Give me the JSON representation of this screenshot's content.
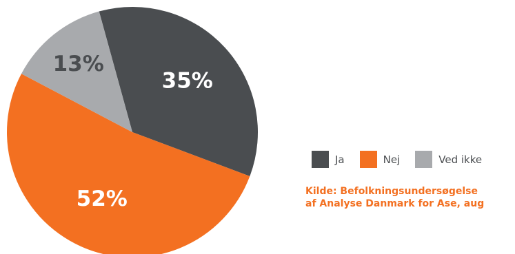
{
  "chart_data": {
    "type": "pie",
    "categories": [
      "Ja",
      "Nej",
      "Ved ikke"
    ],
    "values": [
      35,
      52,
      13
    ],
    "value_labels": [
      "35%",
      "52%",
      "13%"
    ],
    "colors": [
      "#4a4d50",
      "#f37021",
      "#a8aaad"
    ],
    "label_colors": [
      "#ffffff",
      "#ffffff",
      "#4a4d50"
    ],
    "legend_position": "right"
  },
  "legend": {
    "items": [
      {
        "label": "Ja",
        "color": "#4a4d50"
      },
      {
        "label": "Nej",
        "color": "#f37021"
      },
      {
        "label": "Ved ikke",
        "color": "#a8aaad"
      }
    ]
  },
  "source": {
    "line1": "Kilde: Befolkningsundersøgelse",
    "line2": "af Analyse Danmark for Ase, aug"
  }
}
